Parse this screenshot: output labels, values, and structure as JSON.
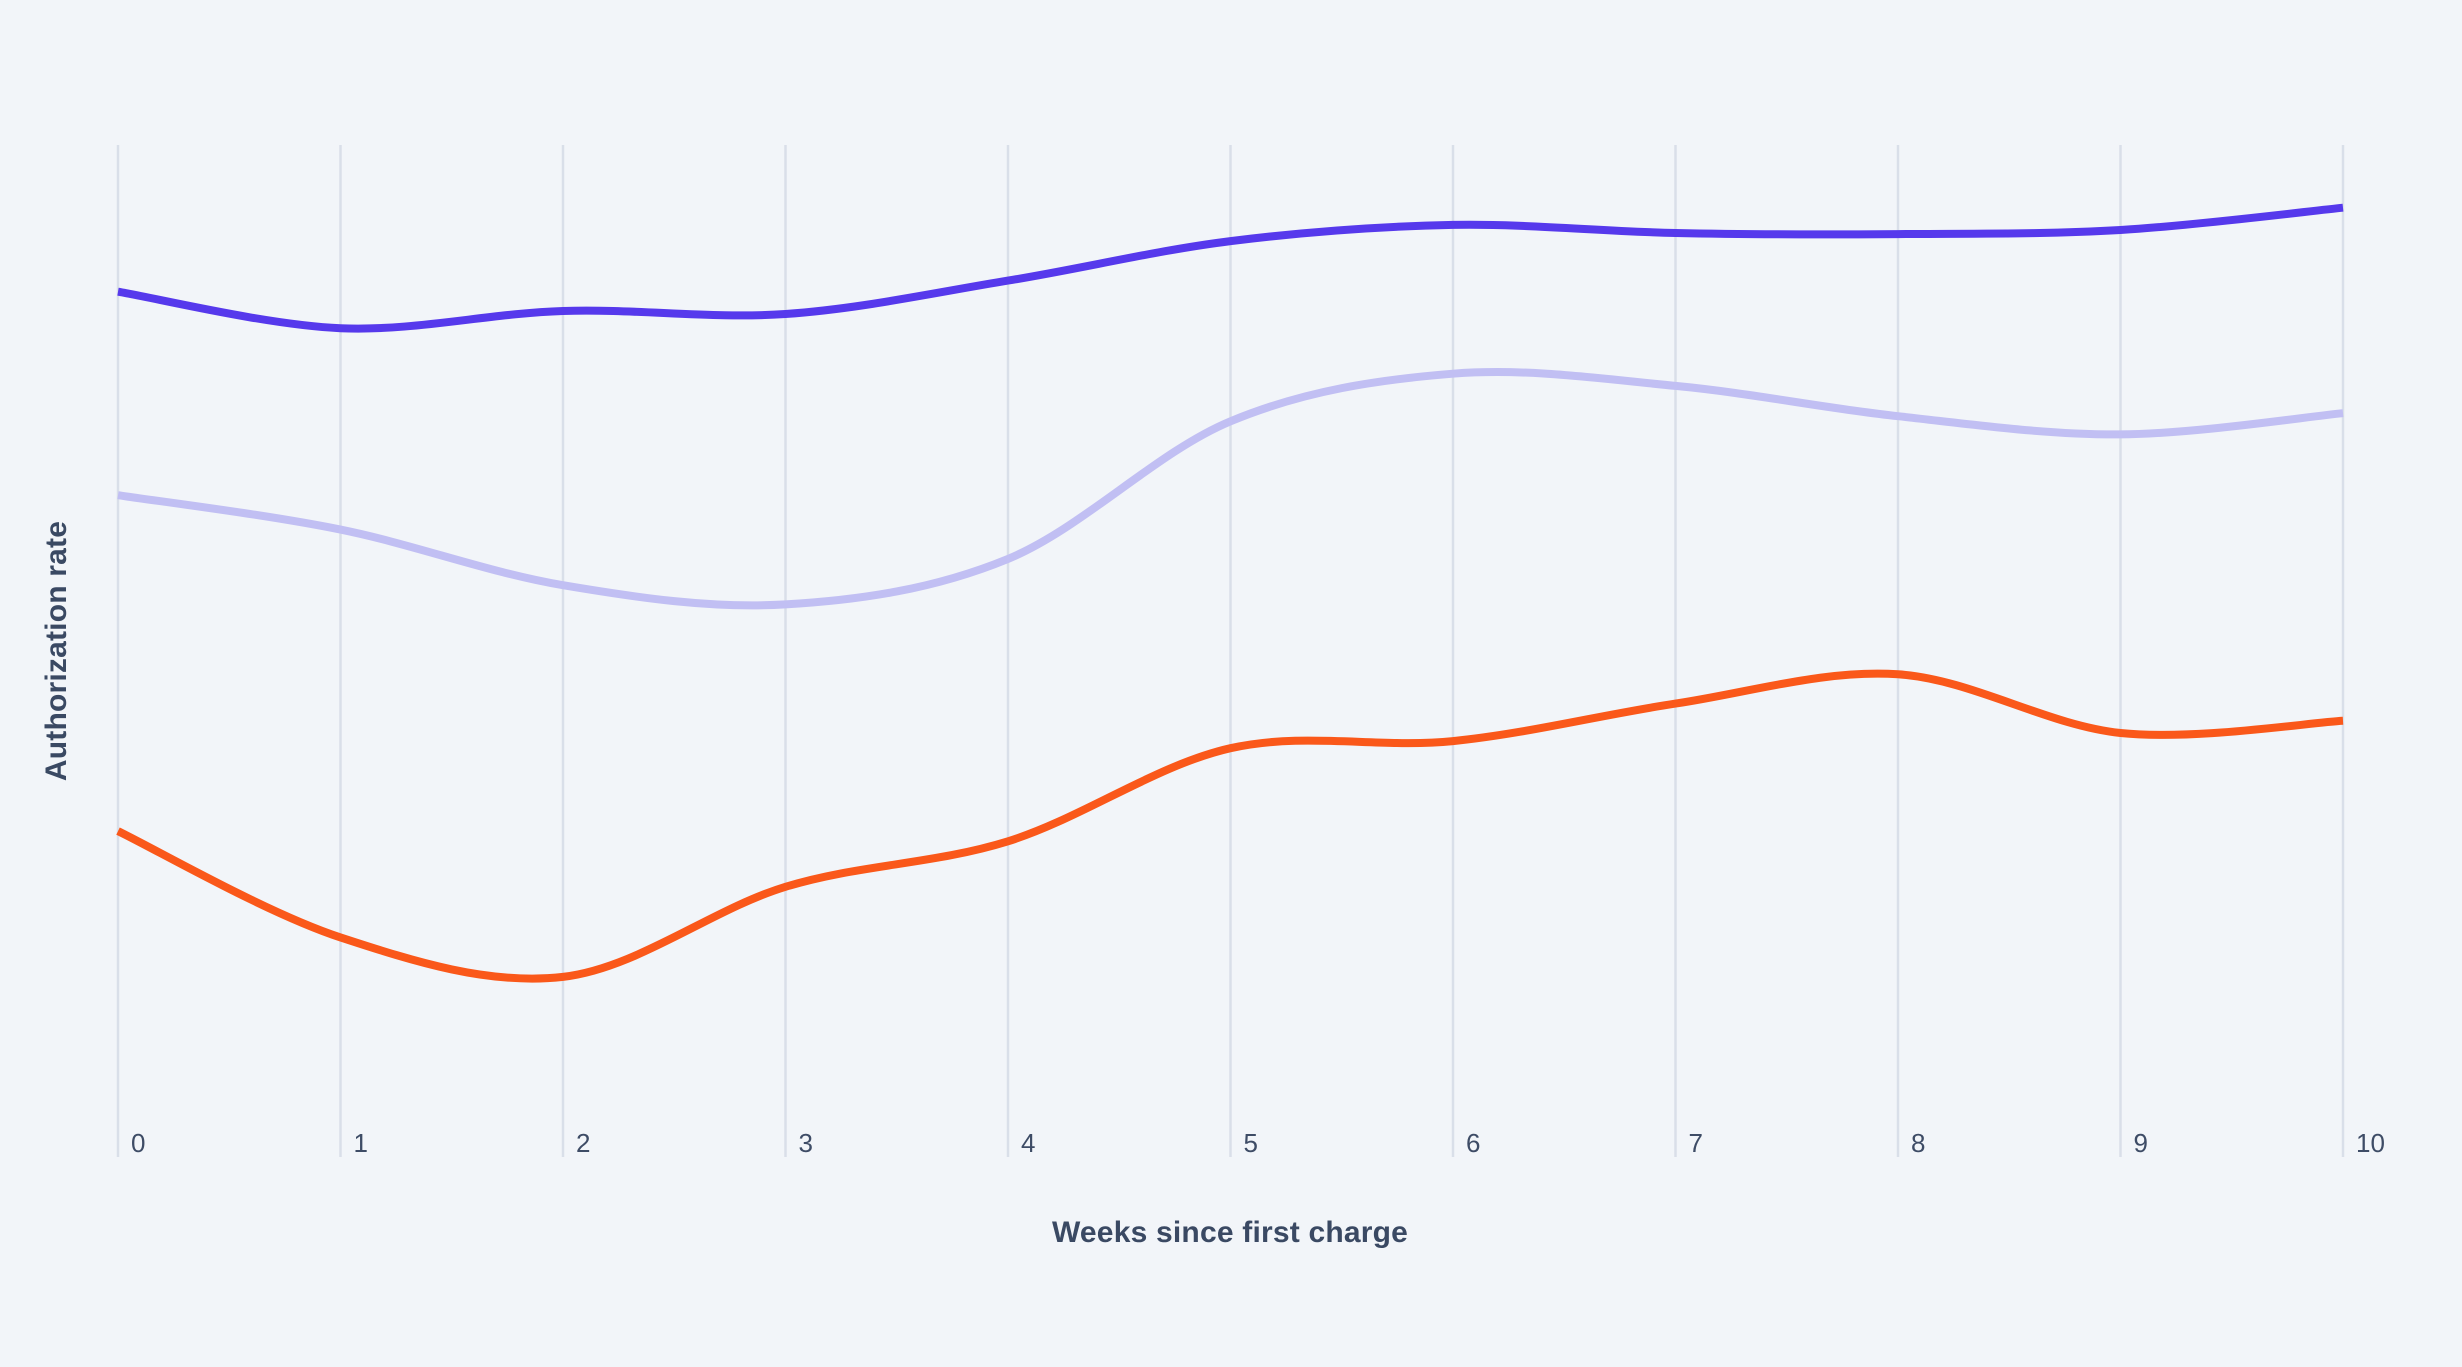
{
  "chart_data": {
    "type": "line",
    "title": "",
    "xlabel": "Weeks since first charge",
    "ylabel": "Authorization rate",
    "x": [
      0,
      1,
      2,
      3,
      4,
      5,
      6,
      7,
      8,
      9,
      10
    ],
    "x_tick_labels": [
      "0",
      "1",
      "2",
      "3",
      "4",
      "5",
      "6",
      "7",
      "8",
      "9",
      "10"
    ],
    "ylim": [
      0,
      100
    ],
    "y_units": "relative authorization rate (no y tick labels shown; values estimated as % of plot height)",
    "grid": {
      "vertical": true,
      "horizontal": false
    },
    "legend_position": "none",
    "series": [
      {
        "name": "indigo-line",
        "color": "#5639EC",
        "stroke_width": 8,
        "values": [
          85.5,
          81.9,
          83.6,
          83.3,
          86.6,
          90.5,
          92.1,
          91.3,
          91.2,
          91.6,
          93.8
        ]
      },
      {
        "name": "lavender-line",
        "color": "#C1BFF3",
        "stroke_width": 8,
        "values": [
          65.4,
          62.0,
          56.5,
          54.6,
          59.1,
          72.7,
          77.4,
          76.2,
          73.2,
          71.4,
          73.5
        ]
      },
      {
        "name": "orange-line",
        "color": "#FA581A",
        "stroke_width": 8,
        "values": [
          32.2,
          21.7,
          17.8,
          26.7,
          31.2,
          40.4,
          41.1,
          44.8,
          47.7,
          41.9,
          43.1
        ]
      }
    ]
  },
  "styling": {
    "background_color": "#F2F5F9",
    "gridline_color": "#D9DFE9",
    "axis_title_color": "#3A4963",
    "tick_label_color": "#3E4C66"
  }
}
